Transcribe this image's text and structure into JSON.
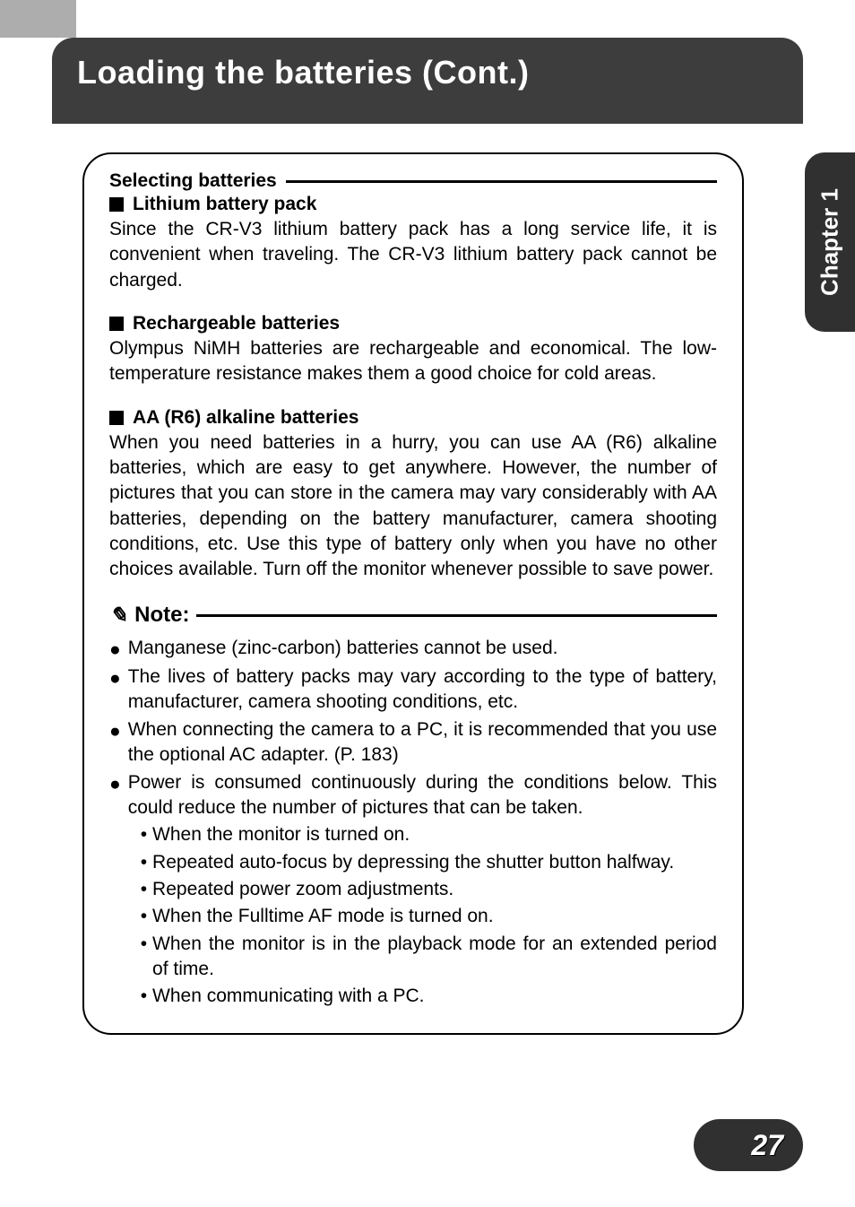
{
  "header": {
    "title": "Loading the batteries (Cont.)"
  },
  "side_tab": {
    "label": "Chapter 1"
  },
  "box": {
    "selecting_label": "Selecting batteries",
    "sections": [
      {
        "heading": "Lithium battery pack",
        "body": "Since the CR-V3 lithium battery pack has a long service life, it is convenient when traveling. The CR-V3 lithium battery pack cannot be charged."
      },
      {
        "heading": "Rechargeable batteries",
        "body": "Olympus NiMH batteries are rechargeable and economical. The low-temperature resistance makes them a good choice for cold areas."
      },
      {
        "heading": "AA (R6) alkaline batteries",
        "body": "When you need batteries in a hurry, you can use AA (R6) alkaline batteries, which are easy to get anywhere. However, the number of pictures that you can store in the camera may vary considerably with AA batteries, depending on the battery manufacturer, camera shooting conditions, etc. Use this type of battery only when you have no other choices available. Turn off the monitor whenever possible to save power."
      }
    ],
    "note_label": "Note:",
    "notes": [
      "Manganese (zinc-carbon) batteries cannot be used.",
      "The lives of battery packs may vary according to the type of battery, manufacturer, camera shooting conditions, etc.",
      "When connecting the camera to a PC, it is recommended that you use the optional AC adapter. (P. 183)",
      "Power is consumed continuously during the conditions below. This could reduce the number of pictures that can be taken."
    ],
    "sub_notes": [
      "When the monitor is turned on.",
      "Repeated auto-focus by depressing the shutter button halfway.",
      "Repeated power zoom adjustments.",
      "When the Fulltime AF mode is turned on.",
      "When the monitor is in the playback mode for an extended period of time.",
      "When communicating with a PC."
    ]
  },
  "page_number": "27",
  "colors": {
    "header_bg": "#3e3d3e",
    "tab_bg": "#303030",
    "top_bar": "#aeadae",
    "text": "#000000",
    "white": "#ffffff"
  }
}
